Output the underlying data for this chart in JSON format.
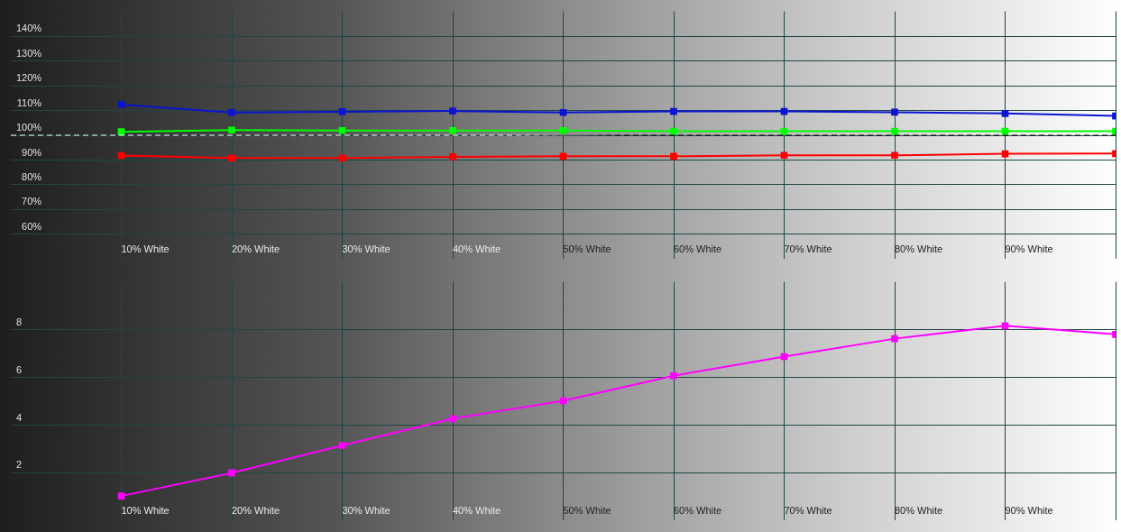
{
  "chart_data": [
    {
      "type": "line",
      "categories": [
        "10% White",
        "20% White",
        "30% White",
        "40% White",
        "50% White",
        "60% White",
        "70% White",
        "80% White",
        "90% White",
        null
      ],
      "series": [
        {
          "color": "#0a14d2",
          "values": [
            112.4,
            109.2,
            109.5,
            109.8,
            109.2,
            109.6,
            109.6,
            109.3,
            108.8,
            107.8
          ]
        },
        {
          "color": "#00ff00",
          "values": [
            101.4,
            102.1,
            101.9,
            101.9,
            101.9,
            101.6,
            101.6,
            101.6,
            101.6,
            101.6
          ]
        },
        {
          "color": "#ff0000",
          "values": [
            91.8,
            90.8,
            90.8,
            91.3,
            91.5,
            91.5,
            91.9,
            91.9,
            92.5,
            92.6
          ]
        }
      ],
      "ylim": [
        50,
        150
      ],
      "yticks": [
        {
          "value": 60,
          "label": "60%"
        },
        {
          "value": 70,
          "label": "70%"
        },
        {
          "value": 80,
          "label": "80%"
        },
        {
          "value": 90,
          "label": "90%"
        },
        {
          "value": 100,
          "label": "100%"
        },
        {
          "value": 110,
          "label": "110%"
        },
        {
          "value": 120,
          "label": "120%"
        },
        {
          "value": 130,
          "label": "130%"
        },
        {
          "value": 140,
          "label": "140%"
        }
      ],
      "ref_lines": [
        {
          "axis": "y",
          "value": 100,
          "line_style": "dashed"
        }
      ],
      "grid": true,
      "legend": false,
      "marker": "square",
      "line_style": "solid"
    },
    {
      "type": "line",
      "categories": [
        "10% White",
        "20% White",
        "30% White",
        "40% White",
        "50% White",
        "60% White",
        "70% White",
        "80% White",
        "90% White",
        null
      ],
      "series": [
        {
          "color": "#ff00ff",
          "values": [
            1.03,
            2.0,
            3.15,
            4.27,
            5.02,
            6.07,
            6.87,
            7.62,
            8.16,
            7.8
          ]
        }
      ],
      "ylim": [
        0,
        10
      ],
      "yticks": [
        2,
        4,
        6,
        8
      ],
      "grid": true,
      "legend": false,
      "marker": "square",
      "line_style": "solid"
    }
  ]
}
